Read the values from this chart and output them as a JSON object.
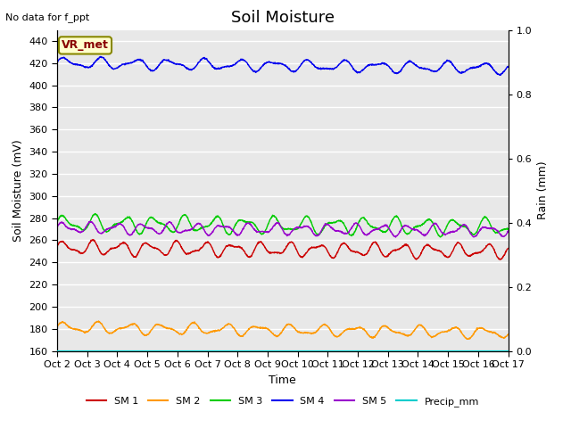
{
  "title": "Soil Moisture",
  "top_left_text": "No data for f_ppt",
  "annotation_text": "VR_met",
  "xlabel": "Time",
  "ylabel_left": "Soil Moisture (mV)",
  "ylabel_right": "Rain (mm)",
  "ylim_left": [
    160,
    450
  ],
  "ylim_right": [
    0.0,
    1.0
  ],
  "yticks_left": [
    160,
    180,
    200,
    220,
    240,
    260,
    280,
    300,
    320,
    340,
    360,
    380,
    400,
    420,
    440
  ],
  "yticks_right": [
    0.0,
    0.2,
    0.4,
    0.6,
    0.8,
    1.0
  ],
  "xtick_labels": [
    "Oct 2",
    "Oct 3",
    "Oct 4",
    "Oct 5",
    "Oct 6",
    "Oct 7",
    "Oct 8",
    "Oct 9",
    "Oct 10",
    "Oct 11",
    "Oct 12",
    "Oct 13",
    "Oct 14",
    "Oct 15",
    "Oct 16",
    "Oct 17"
  ],
  "n_points": 1500,
  "sm1_base": 253,
  "sm1_amp": 5,
  "sm1_freq": 16,
  "sm1_trend": -0.002,
  "sm2_base": 181,
  "sm2_amp": 4,
  "sm2_freq": 14,
  "sm2_trend": -0.003,
  "sm3_base": 275,
  "sm3_amp": 6,
  "sm3_freq": 15,
  "sm3_trend": -0.002,
  "sm4_base": 420,
  "sm4_amp": 4,
  "sm4_freq": 13,
  "sm4_trend": -0.003,
  "sm5_base": 271,
  "sm5_amp": 4,
  "sm5_freq": 17,
  "sm5_trend": -0.0015,
  "color_sm1": "#cc0000",
  "color_sm2": "#ff9900",
  "color_sm3": "#00cc00",
  "color_sm4": "#0000ee",
  "color_sm5": "#9900cc",
  "color_precip": "#00cccc",
  "bg_color": "#e8e8e8",
  "grid_color": "#ffffff",
  "legend_labels": [
    "SM 1",
    "SM 2",
    "SM 3",
    "SM 4",
    "SM 5",
    "Precip_mm"
  ],
  "title_fontsize": 13,
  "axis_label_fontsize": 9,
  "tick_fontsize": 8,
  "figsize": [
    6.4,
    4.8
  ],
  "dpi": 100
}
